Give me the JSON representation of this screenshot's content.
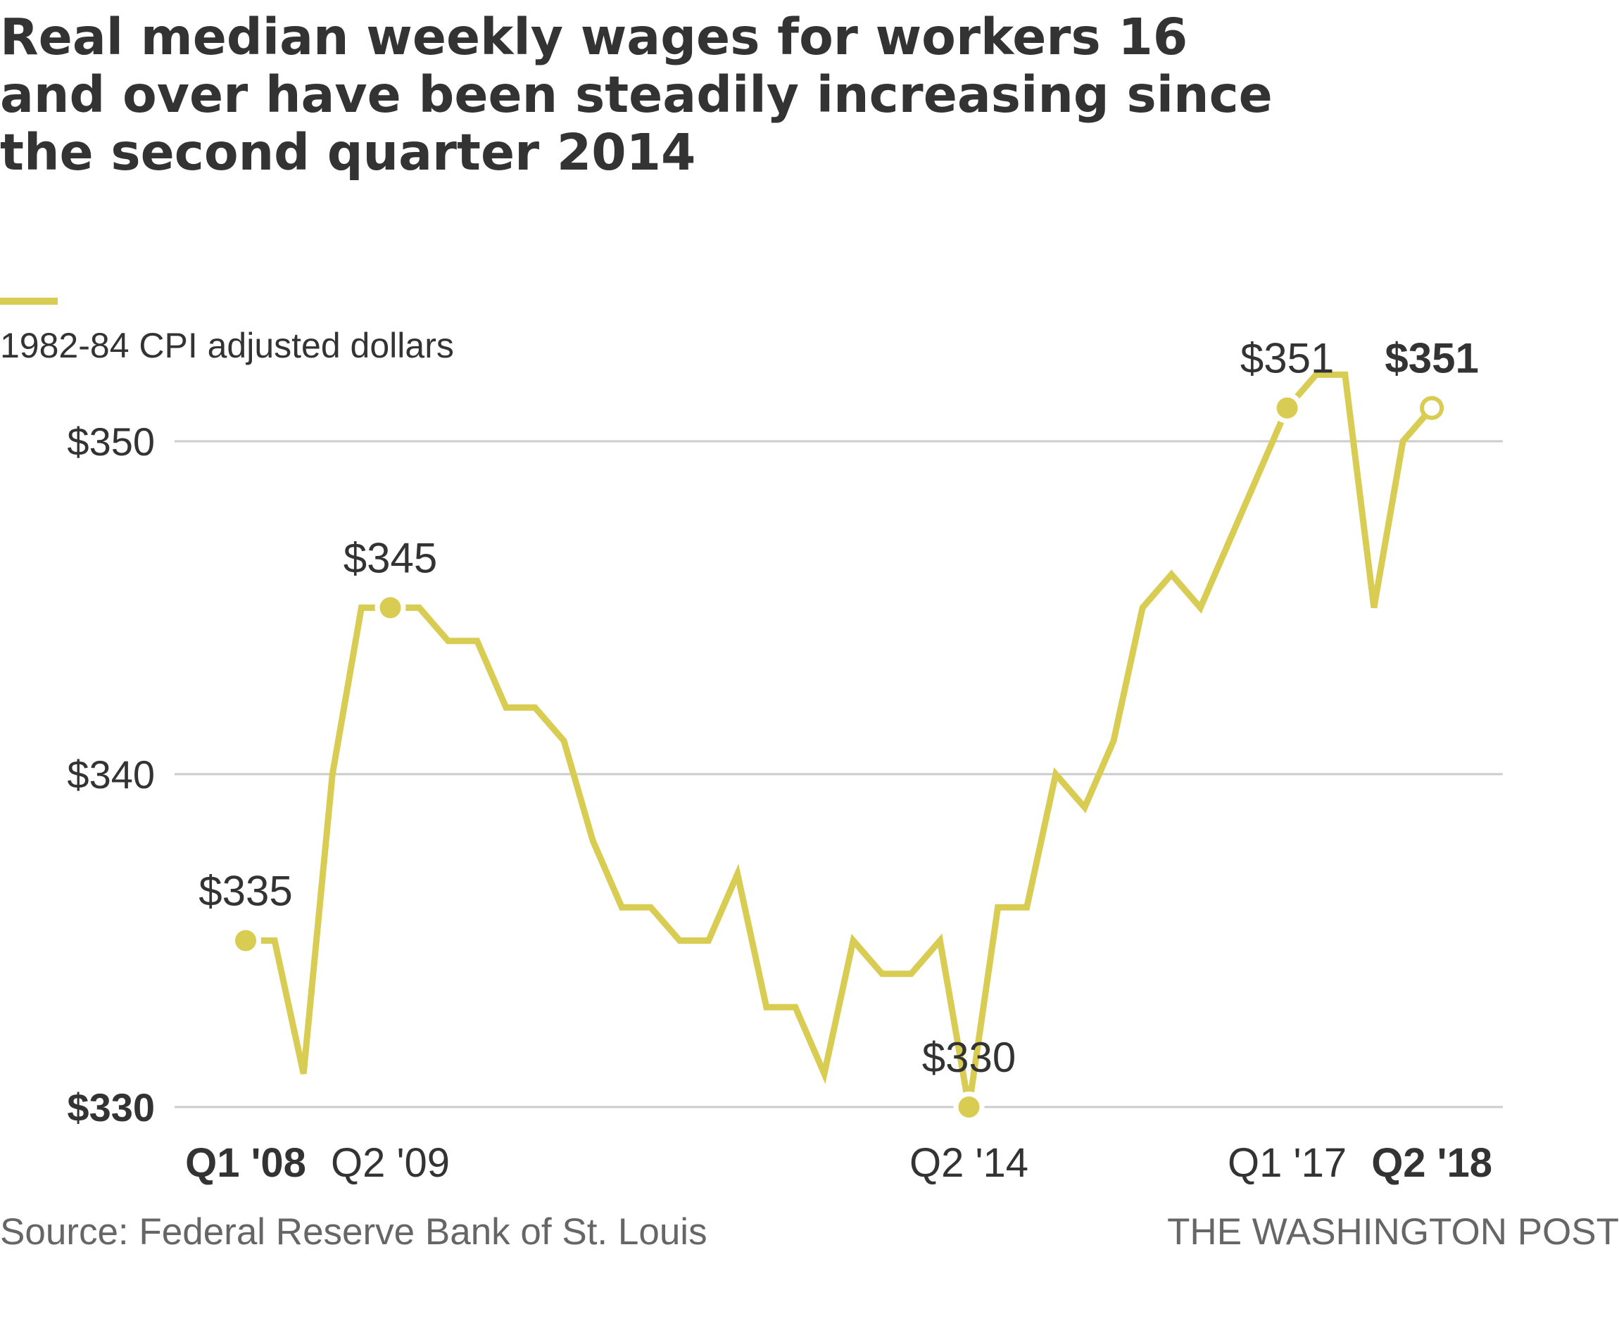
{
  "title": "Real median weekly wages for workers 16 and over have been steadily increasing since the second quarter 2014",
  "units_label": "1982-84 CPI adjusted dollars",
  "source": "Source: Federal Reserve Bank of St. Louis",
  "credit": "THE WASHINGTON POST",
  "colors": {
    "line": "#d9cc52",
    "grid": "#cccccc",
    "text": "#333333",
    "muted": "#666666"
  },
  "chart_data": {
    "type": "line",
    "title": "Real median weekly wages for workers 16 and over have been steadily increasing since the second quarter 2014",
    "ylabel": "1982-84 CPI adjusted dollars",
    "xlabel": "",
    "ylim": [
      330,
      352
    ],
    "y_ticks": [
      {
        "value": 330,
        "label": "$330",
        "bold": true
      },
      {
        "value": 340,
        "label": "$340",
        "bold": false
      },
      {
        "value": 350,
        "label": "$350",
        "bold": false
      }
    ],
    "x_ticks": [
      {
        "index": 0,
        "label": "Q1 '08",
        "bold": true
      },
      {
        "index": 5,
        "label": "Q2 '09",
        "bold": false
      },
      {
        "index": 25,
        "label": "Q2 '14",
        "bold": false
      },
      {
        "index": 36,
        "label": "Q1 '17",
        "bold": false
      },
      {
        "index": 41,
        "label": "Q2 '18",
        "bold": true
      }
    ],
    "series": [
      {
        "name": "Real median weekly wages",
        "values": [
          335,
          335,
          331,
          340,
          345,
          345,
          345,
          344,
          344,
          342,
          342,
          341,
          338,
          336,
          336,
          335,
          335,
          337,
          333,
          333,
          331,
          335,
          334,
          334,
          335,
          330,
          336,
          336,
          340,
          339,
          341,
          345,
          346,
          345,
          347,
          349,
          351,
          352,
          352,
          345,
          350,
          351
        ]
      }
    ],
    "annotations": [
      {
        "index": 0,
        "value": 335,
        "label": "$335",
        "bold": false,
        "open": false
      },
      {
        "index": 5,
        "value": 345,
        "label": "$345",
        "bold": false,
        "open": false
      },
      {
        "index": 25,
        "value": 330,
        "label": "$330",
        "bold": false,
        "open": false
      },
      {
        "index": 36,
        "value": 351,
        "label": "$351",
        "bold": false,
        "open": false
      },
      {
        "index": 41,
        "value": 351,
        "label": "$351",
        "bold": true,
        "open": true
      }
    ]
  }
}
